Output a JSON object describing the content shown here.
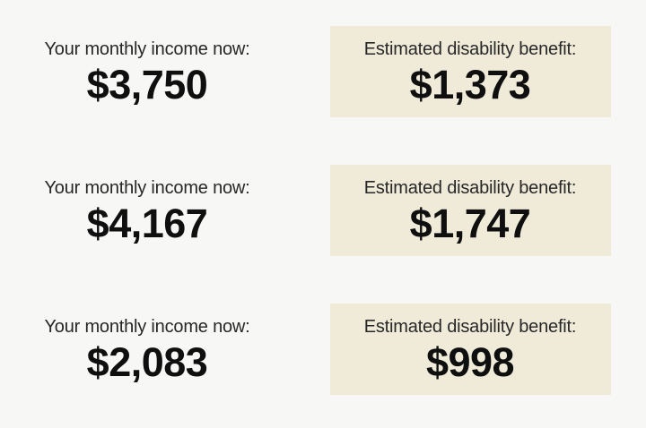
{
  "page": {
    "background_color": "#f7f7f6",
    "benefit_box_color": "#f0ebd9",
    "label_color": "#272727",
    "value_color": "#0f0f0f"
  },
  "rows": [
    {
      "income_label": "Your monthly income now:",
      "income_value": "$3,750",
      "benefit_label": "Estimated disability benefit:",
      "benefit_value": "$1,373"
    },
    {
      "income_label": "Your monthly income now:",
      "income_value": "$4,167",
      "benefit_label": "Estimated disability benefit:",
      "benefit_value": "$1,747"
    },
    {
      "income_label": "Your monthly income now:",
      "income_value": "$2,083",
      "benefit_label": "Estimated disability benefit:",
      "benefit_value": "$998"
    }
  ]
}
